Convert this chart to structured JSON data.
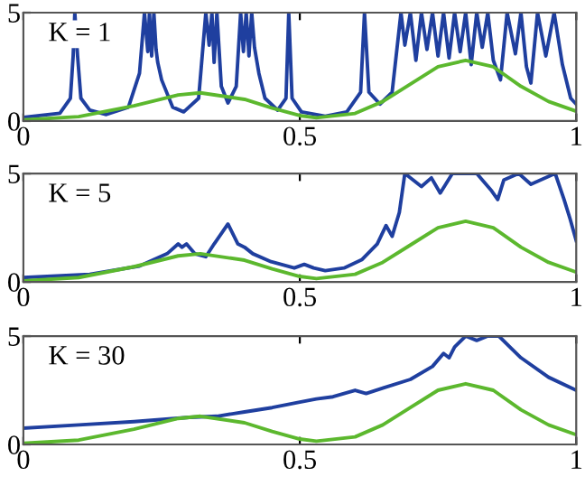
{
  "chart_data": [
    {
      "type": "line",
      "annotations": [
        "K = 1"
      ],
      "xlim": [
        0,
        1
      ],
      "ylim": [
        0,
        5
      ],
      "xticks": [
        0,
        0.5,
        1
      ],
      "yticks": [
        0,
        5
      ],
      "grid": false,
      "legend": false,
      "series": [
        {
          "color": "#1f3f9f",
          "x": [
            0,
            0.066,
            0.085,
            0.09,
            0.093,
            0.098,
            0.104,
            0.12,
            0.15,
            0.19,
            0.21,
            0.219,
            0.225,
            0.228,
            0.232,
            0.236,
            0.24,
            0.243,
            0.25,
            0.27,
            0.29,
            0.317,
            0.33,
            0.336,
            0.341,
            0.345,
            0.35,
            0.358,
            0.37,
            0.385,
            0.393,
            0.398,
            0.403,
            0.408,
            0.413,
            0.418,
            0.426,
            0.437,
            0.46,
            0.475,
            0.48,
            0.486,
            0.503,
            0.546,
            0.585,
            0.61,
            0.617,
            0.625,
            0.645,
            0.667,
            0.683,
            0.69,
            0.7,
            0.71,
            0.72,
            0.73,
            0.74,
            0.75,
            0.76,
            0.77,
            0.78,
            0.79,
            0.8,
            0.81,
            0.82,
            0.83,
            0.84,
            0.85,
            0.863,
            0.875,
            0.89,
            0.9,
            0.91,
            0.918,
            0.93,
            0.945,
            0.96,
            0.975,
            0.99,
            1.0
          ],
          "values": [
            0.17,
            0.36,
            1.05,
            3,
            5,
            3,
            1.05,
            0.5,
            0.3,
            0.64,
            2.2,
            5,
            3.2,
            5,
            3,
            5,
            3.3,
            2.7,
            1.9,
            0.64,
            0.42,
            1.05,
            5,
            3.5,
            5,
            2.7,
            5,
            1.6,
            0.83,
            1.6,
            5,
            3.2,
            5,
            3,
            5,
            3.4,
            2.2,
            1.05,
            0.5,
            1.05,
            5,
            1.05,
            0.42,
            0.22,
            0.42,
            1.33,
            5,
            1.33,
            0.78,
            1.33,
            5,
            3.5,
            5,
            2.8,
            5,
            3.3,
            5,
            3,
            5,
            2.9,
            5,
            3.2,
            5,
            2.6,
            5,
            3.4,
            5,
            2.8,
            1.9,
            5,
            3.1,
            5,
            2.5,
            1.75,
            5,
            3,
            5,
            2.6,
            1.05,
            0.78
          ]
        },
        {
          "color": "#5cb82e",
          "x": [
            0,
            0.1,
            0.2,
            0.28,
            0.32,
            0.4,
            0.45,
            0.5,
            0.53,
            0.6,
            0.65,
            0.7,
            0.75,
            0.8,
            0.85,
            0.9,
            0.95,
            1.0
          ],
          "values": [
            0.05,
            0.2,
            0.7,
            1.2,
            1.3,
            1.0,
            0.6,
            0.25,
            0.15,
            0.35,
            0.9,
            1.7,
            2.5,
            2.8,
            2.5,
            1.6,
            0.9,
            0.45
          ]
        }
      ]
    },
    {
      "type": "line",
      "annotations": [
        "K = 5"
      ],
      "xlim": [
        0,
        1
      ],
      "ylim": [
        0,
        5
      ],
      "xticks": [
        0,
        0.5,
        1
      ],
      "yticks": [
        0,
        5
      ],
      "grid": false,
      "legend": false,
      "series": [
        {
          "color": "#1f3f9f",
          "x": [
            0,
            0.12,
            0.21,
            0.26,
            0.28,
            0.287,
            0.295,
            0.31,
            0.33,
            0.345,
            0.37,
            0.388,
            0.4,
            0.415,
            0.448,
            0.49,
            0.508,
            0.525,
            0.546,
            0.58,
            0.612,
            0.64,
            0.656,
            0.667,
            0.68,
            0.69,
            0.72,
            0.738,
            0.754,
            0.776,
            0.82,
            0.847,
            0.858,
            0.869,
            0.896,
            0.918,
            0.962,
            0.978,
            0.989,
            1.0
          ],
          "values": [
            0.2,
            0.35,
            0.73,
            1.3,
            1.75,
            1.6,
            1.75,
            1.3,
            1.16,
            1.75,
            2.67,
            1.75,
            1.6,
            1.3,
            0.93,
            0.64,
            0.81,
            0.64,
            0.52,
            0.64,
            1.02,
            1.75,
            2.6,
            2.1,
            3.2,
            5,
            4.4,
            4.8,
            4.1,
            5,
            5,
            4.2,
            3.8,
            4.7,
            5,
            4.5,
            5,
            3.8,
            2.9,
            1.9
          ]
        },
        {
          "color": "#5cb82e",
          "x": [
            0,
            0.1,
            0.2,
            0.28,
            0.32,
            0.4,
            0.45,
            0.5,
            0.53,
            0.6,
            0.65,
            0.7,
            0.75,
            0.8,
            0.85,
            0.9,
            0.95,
            1.0
          ],
          "values": [
            0.05,
            0.2,
            0.7,
            1.2,
            1.3,
            1.0,
            0.6,
            0.25,
            0.15,
            0.35,
            0.9,
            1.7,
            2.5,
            2.8,
            2.5,
            1.6,
            0.9,
            0.45
          ]
        }
      ]
    },
    {
      "type": "line",
      "annotations": [
        "K = 30"
      ],
      "xlim": [
        0,
        1
      ],
      "ylim": [
        0,
        5
      ],
      "xticks": [
        0,
        0.5,
        1
      ],
      "yticks": [
        0,
        5
      ],
      "grid": false,
      "legend": false,
      "series": [
        {
          "color": "#1f3f9f",
          "x": [
            0,
            0.1,
            0.2,
            0.3,
            0.35,
            0.4,
            0.45,
            0.5,
            0.53,
            0.56,
            0.6,
            0.62,
            0.65,
            0.7,
            0.74,
            0.76,
            0.77,
            0.78,
            0.8,
            0.82,
            0.84,
            0.86,
            0.88,
            0.9,
            0.95,
            1.0
          ],
          "values": [
            0.75,
            0.9,
            1.05,
            1.25,
            1.3,
            1.5,
            1.7,
            1.95,
            2.1,
            2.2,
            2.5,
            2.35,
            2.6,
            3.0,
            3.6,
            4.2,
            4.0,
            4.5,
            5,
            4.8,
            5,
            5,
            4.5,
            4.0,
            3.1,
            2.5
          ]
        },
        {
          "color": "#5cb82e",
          "x": [
            0,
            0.1,
            0.2,
            0.28,
            0.32,
            0.4,
            0.45,
            0.5,
            0.53,
            0.6,
            0.65,
            0.7,
            0.75,
            0.8,
            0.85,
            0.9,
            0.95,
            1.0
          ],
          "values": [
            0.05,
            0.2,
            0.7,
            1.2,
            1.3,
            1.0,
            0.6,
            0.25,
            0.15,
            0.35,
            0.9,
            1.7,
            2.5,
            2.8,
            2.5,
            1.6,
            0.9,
            0.45
          ]
        }
      ]
    }
  ]
}
